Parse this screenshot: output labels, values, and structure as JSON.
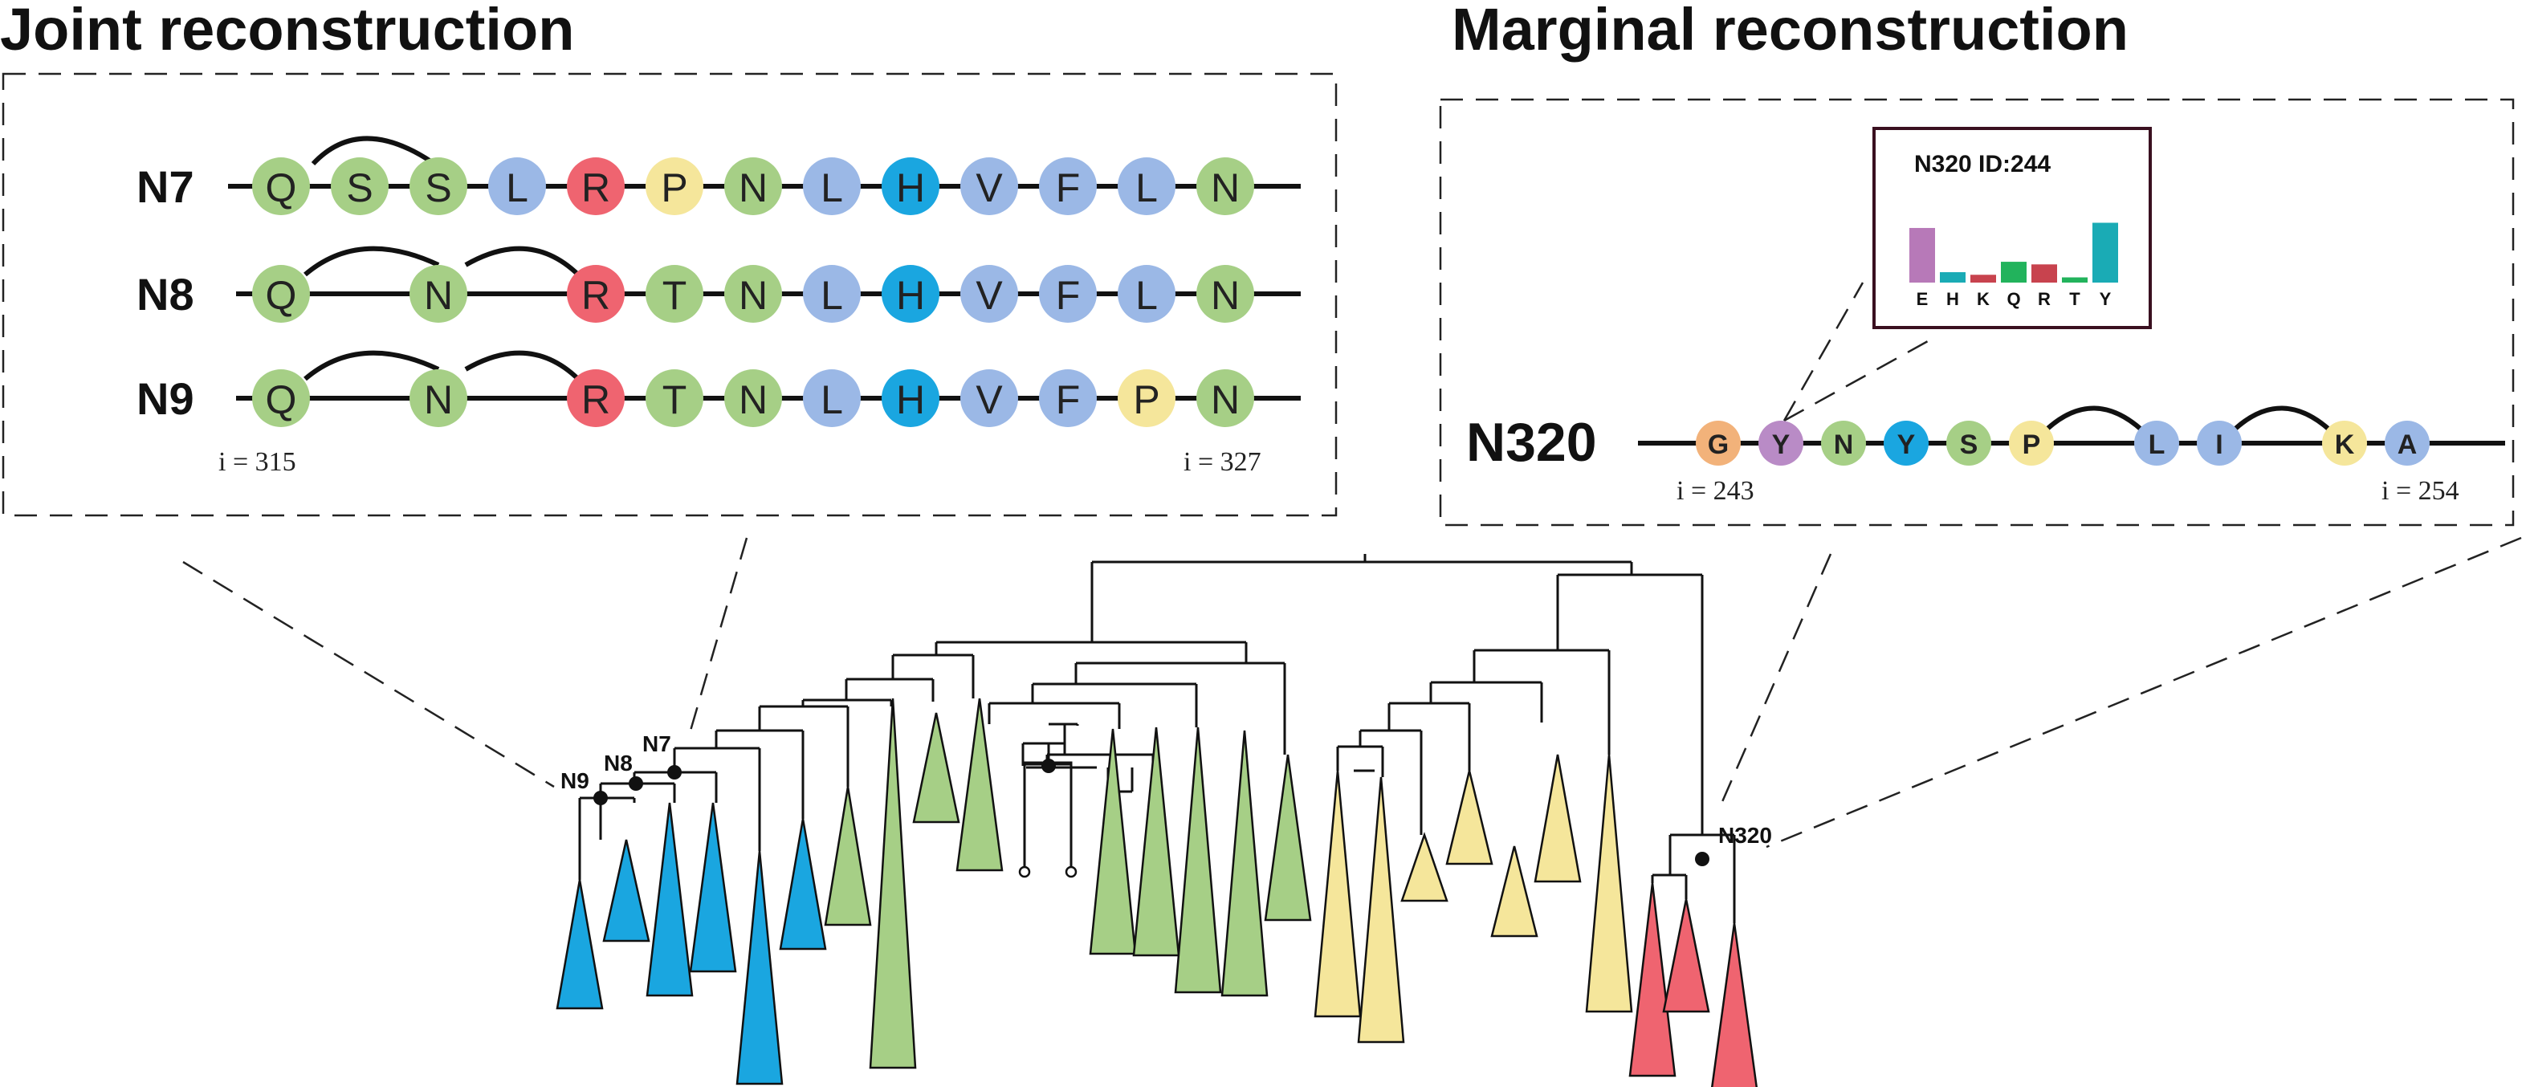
{
  "titles": {
    "joint": "Joint reconstruction",
    "marginal": "Marginal reconstruction"
  },
  "colors": {
    "green": "#a6cf86",
    "blue": "#9bb8e6",
    "cyan": "#1aa6e0",
    "red": "#ef6470",
    "yellow": "#f5e69b",
    "purple": "#b98bc6",
    "orange": "#f2b27a",
    "teal": "#1aabb5",
    "barred": "#c8434e",
    "bargreen": "#22b35c",
    "barpurple": "#b779b8"
  },
  "joint": {
    "rows": [
      {
        "label": "N7",
        "residues": [
          "Q",
          "S",
          "S",
          "L",
          "R",
          "P",
          "N",
          "L",
          "H",
          "V",
          "F",
          "L",
          "N"
        ],
        "colors": [
          "green",
          "green",
          "green",
          "blue",
          "red",
          "yellow",
          "green",
          "blue",
          "cyan",
          "blue",
          "blue",
          "blue",
          "green"
        ]
      },
      {
        "label": "N8",
        "residues": [
          "Q",
          "",
          "N",
          "",
          "R",
          "T",
          "N",
          "L",
          "H",
          "V",
          "F",
          "L",
          "N"
        ],
        "colors": [
          "green",
          "",
          "green",
          "",
          "red",
          "green",
          "green",
          "blue",
          "cyan",
          "blue",
          "blue",
          "blue",
          "green"
        ]
      },
      {
        "label": "N9",
        "residues": [
          "Q",
          "",
          "N",
          "",
          "R",
          "T",
          "N",
          "L",
          "H",
          "V",
          "F",
          "P",
          "N"
        ],
        "colors": [
          "green",
          "",
          "green",
          "",
          "red",
          "green",
          "green",
          "blue",
          "cyan",
          "blue",
          "blue",
          "yellow",
          "green"
        ]
      }
    ],
    "index_start": "i = 315",
    "index_end": "i = 327"
  },
  "marginal": {
    "label": "N320",
    "residues": [
      "G",
      "Y",
      "N",
      "Y",
      "S",
      "P",
      "",
      "L",
      "I",
      "",
      "K",
      "A"
    ],
    "colors": [
      "orange",
      "purple",
      "green",
      "cyan",
      "green",
      "yellow",
      "",
      "blue",
      "blue",
      "",
      "yellow",
      "blue"
    ],
    "index_start": "i = 243",
    "index_end": "i = 254",
    "inset": {
      "title": "N320 ID:244",
      "categories": [
        "E",
        "H",
        "K",
        "Q",
        "R",
        "T",
        "Y"
      ],
      "values": [
        0.42,
        0.08,
        0.06,
        0.16,
        0.14,
        0.04,
        0.46
      ],
      "bar_colors": [
        "barpurple",
        "teal",
        "barred",
        "bargreen",
        "barred",
        "bargreen",
        "teal"
      ]
    }
  },
  "tree": {
    "nodes": [
      "N9",
      "N8",
      "N7",
      "N320"
    ]
  }
}
